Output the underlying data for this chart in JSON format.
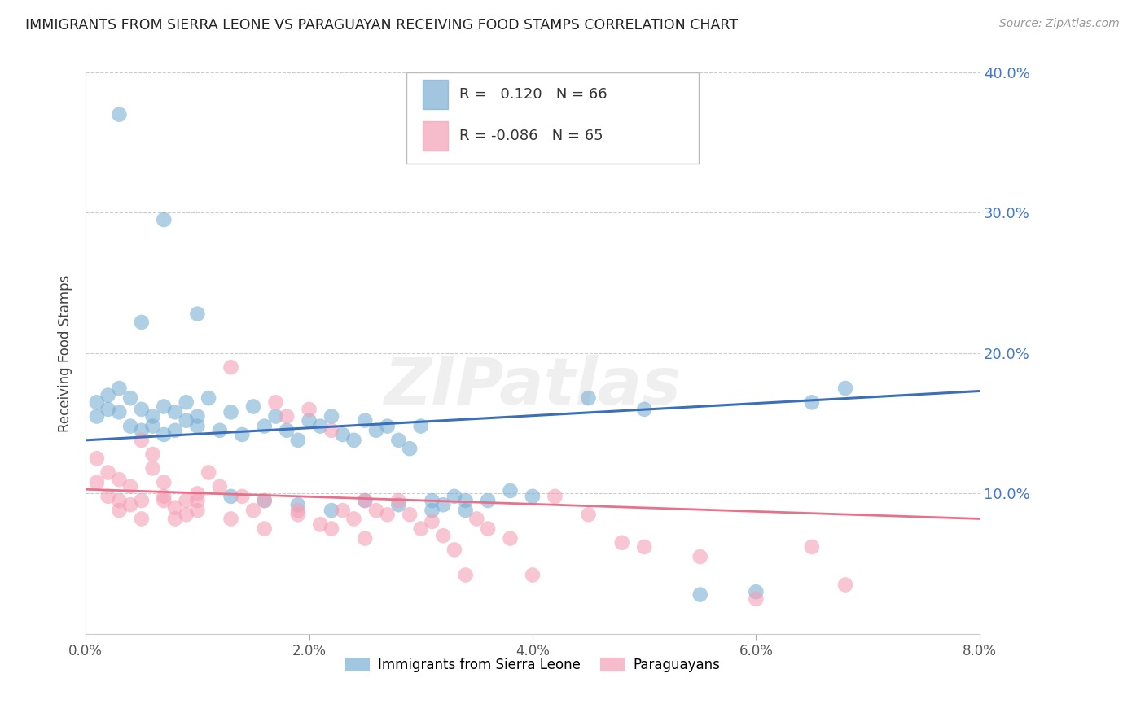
{
  "title": "IMMIGRANTS FROM SIERRA LEONE VS PARAGUAYAN RECEIVING FOOD STAMPS CORRELATION CHART",
  "source": "Source: ZipAtlas.com",
  "ylabel": "Receiving Food Stamps",
  "r1": 0.12,
  "n1": 66,
  "r2": -0.086,
  "n2": 65,
  "color1": "#7BAFD4",
  "color2": "#F4A0B5",
  "line1_color": "#3B6FBA",
  "line2_color": "#E8708A",
  "xlim": [
    0.0,
    0.08
  ],
  "ylim": [
    0.0,
    0.4
  ],
  "yticks": [
    0.0,
    0.1,
    0.2,
    0.3,
    0.4
  ],
  "xticks": [
    0.0,
    0.02,
    0.04,
    0.06,
    0.08
  ],
  "xtick_labels": [
    "0.0%",
    "2.0%",
    "4.0%",
    "6.0%",
    "8.0%"
  ],
  "ytick_labels": [
    "",
    "10.0%",
    "20.0%",
    "30.0%",
    "40.0%"
  ],
  "watermark": "ZIPatlas",
  "legend1_label": "Immigrants from Sierra Leone",
  "legend2_label": "Paraguayans",
  "line1_y0": 0.138,
  "line1_y1": 0.173,
  "line2_y0": 0.103,
  "line2_y1": 0.082,
  "sierra_leone_x": [
    0.001,
    0.001,
    0.002,
    0.002,
    0.003,
    0.003,
    0.004,
    0.004,
    0.005,
    0.005,
    0.006,
    0.006,
    0.007,
    0.007,
    0.008,
    0.008,
    0.009,
    0.009,
    0.01,
    0.01,
    0.011,
    0.012,
    0.013,
    0.014,
    0.015,
    0.016,
    0.017,
    0.018,
    0.019,
    0.02,
    0.021,
    0.022,
    0.023,
    0.024,
    0.025,
    0.026,
    0.027,
    0.028,
    0.029,
    0.03,
    0.031,
    0.032,
    0.033,
    0.034,
    0.036,
    0.038,
    0.04,
    0.045,
    0.05,
    0.055,
    0.06,
    0.065,
    0.068,
    0.003,
    0.005,
    0.007,
    0.01,
    0.013,
    0.016,
    0.019,
    0.022,
    0.025,
    0.028,
    0.031,
    0.034
  ],
  "sierra_leone_y": [
    0.165,
    0.155,
    0.17,
    0.16,
    0.175,
    0.158,
    0.168,
    0.148,
    0.16,
    0.145,
    0.155,
    0.148,
    0.162,
    0.142,
    0.158,
    0.145,
    0.152,
    0.165,
    0.148,
    0.155,
    0.168,
    0.145,
    0.158,
    0.142,
    0.162,
    0.148,
    0.155,
    0.145,
    0.138,
    0.152,
    0.148,
    0.155,
    0.142,
    0.138,
    0.152,
    0.145,
    0.148,
    0.138,
    0.132,
    0.148,
    0.095,
    0.092,
    0.098,
    0.088,
    0.095,
    0.102,
    0.098,
    0.168,
    0.16,
    0.028,
    0.03,
    0.165,
    0.175,
    0.37,
    0.222,
    0.295,
    0.228,
    0.098,
    0.095,
    0.092,
    0.088,
    0.095,
    0.092,
    0.088,
    0.095
  ],
  "paraguayan_x": [
    0.001,
    0.001,
    0.002,
    0.002,
    0.003,
    0.003,
    0.004,
    0.004,
    0.005,
    0.005,
    0.006,
    0.006,
    0.007,
    0.007,
    0.008,
    0.008,
    0.009,
    0.009,
    0.01,
    0.01,
    0.011,
    0.012,
    0.013,
    0.014,
    0.015,
    0.016,
    0.017,
    0.018,
    0.019,
    0.02,
    0.021,
    0.022,
    0.023,
    0.024,
    0.025,
    0.026,
    0.027,
    0.028,
    0.029,
    0.03,
    0.031,
    0.032,
    0.033,
    0.034,
    0.035,
    0.036,
    0.038,
    0.04,
    0.042,
    0.045,
    0.048,
    0.05,
    0.055,
    0.06,
    0.065,
    0.068,
    0.003,
    0.005,
    0.007,
    0.01,
    0.013,
    0.016,
    0.019,
    0.022,
    0.025
  ],
  "paraguayan_y": [
    0.125,
    0.108,
    0.115,
    0.098,
    0.11,
    0.095,
    0.105,
    0.092,
    0.095,
    0.138,
    0.128,
    0.118,
    0.108,
    0.098,
    0.09,
    0.082,
    0.095,
    0.085,
    0.095,
    0.1,
    0.115,
    0.105,
    0.19,
    0.098,
    0.088,
    0.075,
    0.165,
    0.155,
    0.085,
    0.16,
    0.078,
    0.145,
    0.088,
    0.082,
    0.095,
    0.088,
    0.085,
    0.095,
    0.085,
    0.075,
    0.08,
    0.07,
    0.06,
    0.042,
    0.082,
    0.075,
    0.068,
    0.042,
    0.098,
    0.085,
    0.065,
    0.062,
    0.055,
    0.025,
    0.062,
    0.035,
    0.088,
    0.082,
    0.095,
    0.088,
    0.082,
    0.095,
    0.088,
    0.075,
    0.068
  ]
}
